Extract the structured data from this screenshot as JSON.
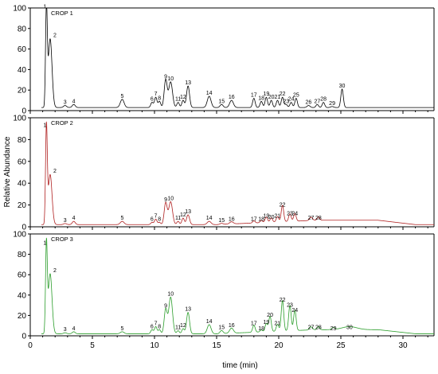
{
  "chart_data": {
    "type": "line",
    "xlabel": "time (min)",
    "ylabel": "Relative Abundance",
    "xlim": [
      0,
      32.5
    ],
    "ylim": [
      0,
      100
    ],
    "x_ticks": [
      0,
      5,
      10,
      15,
      20,
      25,
      30
    ],
    "y_ticks": [
      0,
      20,
      40,
      60,
      80,
      100
    ],
    "panels": [
      {
        "title": "CROP 1",
        "color": "#000000",
        "baseline": 3,
        "peaks": [
          {
            "label": "1",
            "x": 1.3,
            "y": 98,
            "w": 0.07
          },
          {
            "label": "2",
            "x": 1.6,
            "y": 70,
            "w": 0.15
          },
          {
            "label": "3",
            "x": 2.8,
            "y": 5,
            "w": 0.12
          },
          {
            "label": "4",
            "x": 3.5,
            "y": 6,
            "w": 0.12
          },
          {
            "label": "5",
            "x": 7.4,
            "y": 11,
            "w": 0.15
          },
          {
            "label": "6",
            "x": 9.8,
            "y": 8,
            "w": 0.1
          },
          {
            "label": "7",
            "x": 10.1,
            "y": 13,
            "w": 0.1
          },
          {
            "label": "8",
            "x": 10.4,
            "y": 9,
            "w": 0.1
          },
          {
            "label": "9",
            "x": 10.9,
            "y": 30,
            "w": 0.12
          },
          {
            "label": "10",
            "x": 11.3,
            "y": 28,
            "w": 0.15
          },
          {
            "label": "11",
            "x": 11.9,
            "y": 8,
            "w": 0.1
          },
          {
            "label": "12",
            "x": 12.3,
            "y": 10,
            "w": 0.1
          },
          {
            "label": "13",
            "x": 12.7,
            "y": 24,
            "w": 0.12
          },
          {
            "label": "14",
            "x": 14.4,
            "y": 14,
            "w": 0.15
          },
          {
            "label": "15",
            "x": 15.4,
            "y": 6,
            "w": 0.12
          },
          {
            "label": "16",
            "x": 16.2,
            "y": 10,
            "w": 0.15
          },
          {
            "label": "17",
            "x": 18.0,
            "y": 12,
            "w": 0.1
          },
          {
            "label": "18",
            "x": 18.6,
            "y": 9,
            "w": 0.1
          },
          {
            "label": "19",
            "x": 19.0,
            "y": 13,
            "w": 0.1
          },
          {
            "label": "20",
            "x": 19.4,
            "y": 10,
            "w": 0.1
          },
          {
            "label": "21",
            "x": 19.9,
            "y": 10,
            "w": 0.1
          },
          {
            "label": "22",
            "x": 20.3,
            "y": 13,
            "w": 0.1
          },
          {
            "label": "23",
            "x": 20.6,
            "y": 6,
            "w": 0.1
          },
          {
            "label": "24",
            "x": 21.0,
            "y": 8,
            "w": 0.1
          },
          {
            "label": "25",
            "x": 21.4,
            "y": 12,
            "w": 0.1
          },
          {
            "label": "26",
            "x": 22.4,
            "y": 5,
            "w": 0.12
          },
          {
            "label": "27",
            "x": 23.1,
            "y": 6,
            "w": 0.1
          },
          {
            "label": "28",
            "x": 23.6,
            "y": 8,
            "w": 0.1
          },
          {
            "label": "29",
            "x": 24.3,
            "y": 4,
            "w": 0.12
          },
          {
            "label": "30",
            "x": 25.1,
            "y": 21,
            "w": 0.1
          }
        ]
      },
      {
        "title": "CROP 2",
        "color": "#b02020",
        "baseline": 2,
        "peaks": [
          {
            "label": "1",
            "x": 1.3,
            "y": 90,
            "w": 0.07
          },
          {
            "label": "2",
            "x": 1.6,
            "y": 48,
            "w": 0.15
          },
          {
            "label": "3",
            "x": 2.8,
            "y": 3,
            "w": 0.12
          },
          {
            "label": "4",
            "x": 3.5,
            "y": 5,
            "w": 0.12
          },
          {
            "label": "5",
            "x": 7.4,
            "y": 5,
            "w": 0.15
          },
          {
            "label": "6",
            "x": 9.8,
            "y": 4,
            "w": 0.1
          },
          {
            "label": "7",
            "x": 10.1,
            "y": 7,
            "w": 0.1
          },
          {
            "label": "8",
            "x": 10.4,
            "y": 4,
            "w": 0.1
          },
          {
            "label": "9",
            "x": 10.9,
            "y": 22,
            "w": 0.12
          },
          {
            "label": "10",
            "x": 11.3,
            "y": 23,
            "w": 0.15
          },
          {
            "label": "11",
            "x": 11.9,
            "y": 5,
            "w": 0.1
          },
          {
            "label": "12",
            "x": 12.3,
            "y": 8,
            "w": 0.1
          },
          {
            "label": "13",
            "x": 12.7,
            "y": 11,
            "w": 0.12
          },
          {
            "label": "14",
            "x": 14.4,
            "y": 5,
            "w": 0.15
          },
          {
            "label": "15",
            "x": 15.4,
            "y": 3,
            "w": 0.12
          },
          {
            "label": "16",
            "x": 16.2,
            "y": 4,
            "w": 0.15
          },
          {
            "label": "17",
            "x": 18.0,
            "y": 4,
            "w": 0.1
          },
          {
            "label": "18",
            "x": 18.6,
            "y": 4,
            "w": 0.1
          },
          {
            "label": "19",
            "x": 19.0,
            "y": 7,
            "w": 0.1
          },
          {
            "label": "20",
            "x": 19.4,
            "y": 6,
            "w": 0.1
          },
          {
            "label": "21",
            "x": 19.9,
            "y": 7,
            "w": 0.1
          },
          {
            "label": "22",
            "x": 20.3,
            "y": 17,
            "w": 0.1
          },
          {
            "label": "23",
            "x": 20.9,
            "y": 9,
            "w": 0.1
          },
          {
            "label": "24",
            "x": 21.3,
            "y": 9,
            "w": 0.1
          },
          {
            "label": "27",
            "x": 22.6,
            "y": 5,
            "w": 0.12
          },
          {
            "label": "28",
            "x": 23.2,
            "y": 5,
            "w": 0.1
          }
        ]
      },
      {
        "title": "CROP 3",
        "color": "#2a9d2a",
        "baseline": 2,
        "peaks": [
          {
            "label": "1",
            "x": 1.3,
            "y": 88,
            "w": 0.07
          },
          {
            "label": "2",
            "x": 1.6,
            "y": 61,
            "w": 0.15
          },
          {
            "label": "3",
            "x": 2.8,
            "y": 3,
            "w": 0.12
          },
          {
            "label": "4",
            "x": 3.5,
            "y": 4,
            "w": 0.12
          },
          {
            "label": "5",
            "x": 7.4,
            "y": 4,
            "w": 0.15
          },
          {
            "label": "6",
            "x": 9.8,
            "y": 6,
            "w": 0.1
          },
          {
            "label": "7",
            "x": 10.1,
            "y": 9,
            "w": 0.1
          },
          {
            "label": "8",
            "x": 10.4,
            "y": 6,
            "w": 0.1
          },
          {
            "label": "9",
            "x": 10.9,
            "y": 26,
            "w": 0.12
          },
          {
            "label": "10",
            "x": 11.3,
            "y": 38,
            "w": 0.15
          },
          {
            "label": "11",
            "x": 11.9,
            "y": 5,
            "w": 0.1
          },
          {
            "label": "12",
            "x": 12.3,
            "y": 7,
            "w": 0.1
          },
          {
            "label": "13",
            "x": 12.7,
            "y": 23,
            "w": 0.12
          },
          {
            "label": "14",
            "x": 14.4,
            "y": 11,
            "w": 0.15
          },
          {
            "label": "15",
            "x": 15.4,
            "y": 5,
            "w": 0.12
          },
          {
            "label": "16",
            "x": 16.2,
            "y": 7,
            "w": 0.15
          },
          {
            "label": "17",
            "x": 18.0,
            "y": 9,
            "w": 0.1
          },
          {
            "label": "18",
            "x": 18.6,
            "y": 4,
            "w": 0.1
          },
          {
            "label": "19",
            "x": 19.0,
            "y": 10,
            "w": 0.1
          },
          {
            "label": "20",
            "x": 19.3,
            "y": 17,
            "w": 0.1
          },
          {
            "label": "21",
            "x": 19.9,
            "y": 9,
            "w": 0.1
          },
          {
            "label": "22",
            "x": 20.3,
            "y": 32,
            "w": 0.1
          },
          {
            "label": "23",
            "x": 20.9,
            "y": 27,
            "w": 0.1
          },
          {
            "label": "24",
            "x": 21.3,
            "y": 22,
            "w": 0.1
          },
          {
            "label": "27",
            "x": 22.6,
            "y": 5,
            "w": 0.12
          },
          {
            "label": "28",
            "x": 23.2,
            "y": 5,
            "w": 0.1
          },
          {
            "label": "29",
            "x": 24.4,
            "y": 4,
            "w": 0.12
          },
          {
            "label": "30",
            "x": 25.7,
            "y": 5,
            "w": 0.6
          }
        ]
      }
    ]
  }
}
